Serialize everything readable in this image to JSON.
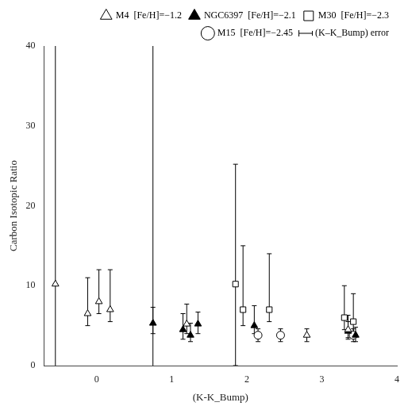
{
  "chart_data": {
    "type": "scatter",
    "xlabel": "(K-K_Bump)",
    "ylabel": "Carbon Isotopic Ratio",
    "xlim": [
      -0.7,
      4.0
    ],
    "ylim": [
      0,
      40
    ],
    "xticks": [
      0,
      1,
      2,
      3,
      4
    ],
    "yticks": [
      0,
      10,
      20,
      30,
      40
    ],
    "grid": false,
    "legend": "upper right",
    "vlines": [
      -0.55,
      0.75
    ],
    "error_label": "(K–K_Bump) error",
    "series": [
      {
        "name": "M4",
        "metallicity": "[Fe/H]=−1.2",
        "marker": "triangle",
        "color": "white",
        "x": [
          -0.55,
          -0.12,
          0.03,
          0.18,
          1.2,
          2.8,
          3.35
        ],
        "values": [
          10.2,
          6.5,
          8.0,
          7.0,
          5.2,
          3.8,
          4.5
        ],
        "yerr_lo": [
          0.0,
          1.5,
          1.5,
          1.5,
          1.2,
          0.8,
          1.0
        ],
        "yerr_hi": [
          0.0,
          4.5,
          4.0,
          5.0,
          2.5,
          0.8,
          1.0
        ]
      },
      {
        "name": "NGC6397",
        "metallicity": "[Fe/H]=−2.1",
        "marker": "triangle",
        "color": "black",
        "x": [
          0.75,
          1.15,
          1.25,
          1.35,
          2.1,
          3.35,
          3.45
        ],
        "values": [
          5.3,
          4.5,
          3.8,
          5.2,
          5.0,
          4.3,
          3.8
        ],
        "yerr_lo": [
          1.3,
          1.2,
          0.8,
          1.2,
          1.0,
          1.0,
          0.8
        ],
        "yerr_hi": [
          2.0,
          2.0,
          1.5,
          1.5,
          2.5,
          2.0,
          1.0
        ]
      },
      {
        "name": "M30",
        "metallicity": "[Fe/H]=−2.3",
        "marker": "square",
        "color": "white",
        "x": [
          1.85,
          1.95,
          2.3,
          3.3,
          3.42
        ],
        "values": [
          10.2,
          7.0,
          7.0,
          6.0,
          5.5
        ],
        "yerr_lo": [
          10.2,
          2.0,
          1.5,
          1.5,
          1.5
        ],
        "yerr_hi": [
          15.0,
          8.0,
          7.0,
          4.0,
          3.5
        ]
      },
      {
        "name": "M15",
        "metallicity": "[Fe/H]=−2.45",
        "marker": "circle",
        "color": "white",
        "x": [
          2.15,
          2.45,
          3.42
        ],
        "values": [
          3.8,
          3.8,
          3.8
        ],
        "yerr_lo": [
          0.8,
          0.8,
          0.8
        ],
        "yerr_hi": [
          0.8,
          0.8,
          0.8
        ]
      }
    ]
  }
}
